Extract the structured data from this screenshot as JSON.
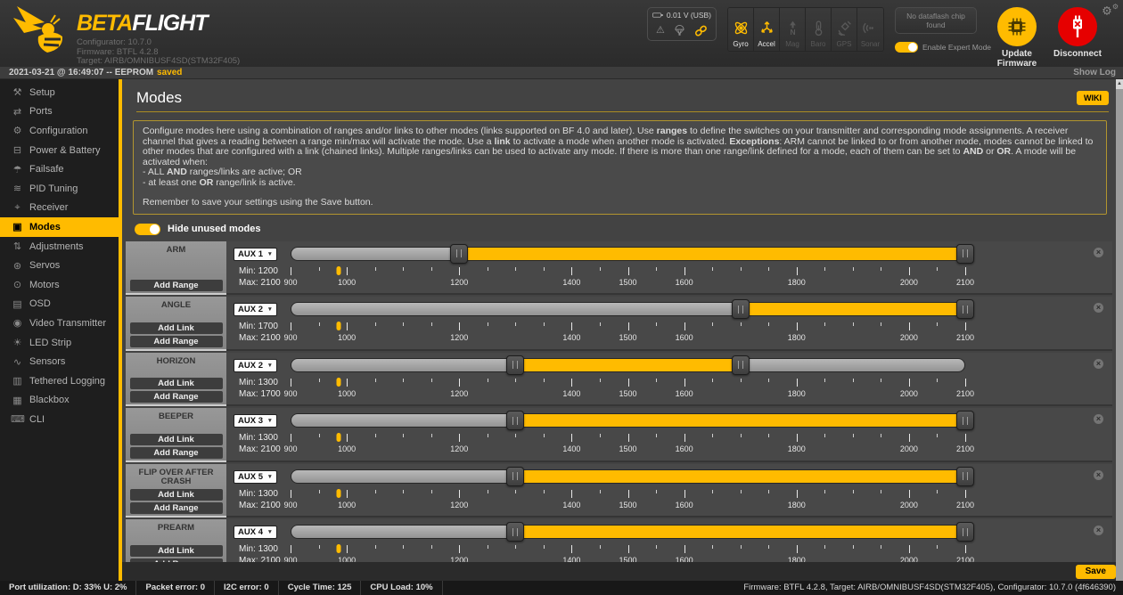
{
  "icons": {
    "dropdown": "▼",
    "close": "×",
    "scroll_up": "▲",
    "gear": "⚙",
    "warning": "⚠"
  },
  "colors": {
    "accent": "#ffbb00",
    "danger": "#e60000"
  },
  "header": {
    "logo_part1": "BETA",
    "logo_part2": "FLIGHT",
    "version_lines": [
      "Configurator: 10.7.0",
      "Firmware: BTFL 4.2.8",
      "Target: AIRB/OMNIBUSF4SD(STM32F405)"
    ],
    "battery_voltage": "0.01 V (USB)",
    "sensors": [
      {
        "label": "Gyro",
        "icon": "gyro",
        "active": true
      },
      {
        "label": "Accel",
        "icon": "accel",
        "active": true
      },
      {
        "label": "Mag",
        "icon": "mag",
        "active": false
      },
      {
        "label": "Baro",
        "icon": "baro",
        "active": false
      },
      {
        "label": "GPS",
        "icon": "gps",
        "active": false
      },
      {
        "label": "Sonar",
        "icon": "sonar",
        "active": false
      }
    ],
    "dataflash_label": "No dataflash chip found",
    "expert_mode_label": "Enable Expert Mode",
    "update_firmware_label": "Update Firmware",
    "disconnect_label": "Disconnect"
  },
  "logbar": {
    "message": "2021-03-21 @ 16:49:07 -- EEPROM",
    "status_word": "saved",
    "show_log": "Show Log"
  },
  "sidebar": {
    "active": "Modes",
    "items": [
      {
        "label": "Setup",
        "glyph": "⚒"
      },
      {
        "label": "Ports",
        "glyph": "⇄"
      },
      {
        "label": "Configuration",
        "glyph": "⚙"
      },
      {
        "label": "Power & Battery",
        "glyph": "⊟"
      },
      {
        "label": "Failsafe",
        "glyph": "☂"
      },
      {
        "label": "PID Tuning",
        "glyph": "≋"
      },
      {
        "label": "Receiver",
        "glyph": "⌖"
      },
      {
        "label": "Modes",
        "glyph": "▣"
      },
      {
        "label": "Adjustments",
        "glyph": "⇅"
      },
      {
        "label": "Servos",
        "glyph": "⊛"
      },
      {
        "label": "Motors",
        "glyph": "⊙"
      },
      {
        "label": "OSD",
        "glyph": "▤"
      },
      {
        "label": "Video Transmitter",
        "glyph": "◉"
      },
      {
        "label": "LED Strip",
        "glyph": "☀"
      },
      {
        "label": "Sensors",
        "glyph": "∿"
      },
      {
        "label": "Tethered Logging",
        "glyph": "▥"
      },
      {
        "label": "Blackbox",
        "glyph": "▦"
      },
      {
        "label": "CLI",
        "glyph": "⌨"
      }
    ]
  },
  "page": {
    "title": "Modes",
    "wiki_label": "WIKI",
    "note_paragraph": "Configure modes here using a combination of ranges and/or links to other modes (links supported on BF 4.0 and later). Use **ranges** to define the switches on your transmitter and corresponding mode assignments. A receiver channel that gives a reading between a range min/max will activate the mode. Use a **link** to activate a mode when another mode is activated. **Exceptions**: ARM cannot be linked to or from another mode, modes cannot be linked to other modes that are configured with a link (chained links). Multiple ranges/links can be used to activate any mode. If there is more than one range/link defined for a mode, each of them can be set to **AND** or **OR**. A mode will be activated when:",
    "note_bullets": [
      "- ALL **AND** ranges/links are active; OR",
      "- at least one **OR** range/link is active."
    ],
    "note_footer": "Remember to save your settings using the Save button.",
    "hide_unused_label": "Hide unused modes",
    "save_label": "Save"
  },
  "axis": {
    "min": 900,
    "max": 2100,
    "minor_step": 50,
    "labeled": [
      900,
      1000,
      1200,
      1400,
      1500,
      1600,
      1800,
      2000,
      2100
    ]
  },
  "modes": [
    {
      "name": "ARM",
      "aux": "AUX 1",
      "min_label": "Min: 1200",
      "max_label": "Max: 2100",
      "buttons": [
        "Add Range"
      ],
      "range": [
        1200,
        2100
      ],
      "marker": 985
    },
    {
      "name": "ANGLE",
      "aux": "AUX 2",
      "min_label": "Min: 1700",
      "max_label": "Max: 2100",
      "buttons": [
        "Add Link",
        "Add Range"
      ],
      "range": [
        1700,
        2100
      ],
      "marker": 985
    },
    {
      "name": "HORIZON",
      "aux": "AUX 2",
      "min_label": "Min: 1300",
      "max_label": "Max: 1700",
      "buttons": [
        "Add Link",
        "Add Range"
      ],
      "range": [
        1300,
        1700
      ],
      "marker": 985
    },
    {
      "name": "BEEPER",
      "aux": "AUX 3",
      "min_label": "Min: 1300",
      "max_label": "Max: 2100",
      "buttons": [
        "Add Link",
        "Add Range"
      ],
      "range": [
        1300,
        2100
      ],
      "marker": 985
    },
    {
      "name": "FLIP OVER AFTER CRASH",
      "aux": "AUX 5",
      "min_label": "Min: 1300",
      "max_label": "Max: 2100",
      "buttons": [
        "Add Link",
        "Add Range"
      ],
      "range": [
        1300,
        2100
      ],
      "marker": 985
    },
    {
      "name": "PREARM",
      "aux": "AUX 4",
      "min_label": "Min: 1300",
      "max_label": "Max: 2100",
      "buttons": [
        "Add Link",
        "Add Range"
      ],
      "range": [
        1300,
        2100
      ],
      "marker": 985
    }
  ],
  "statusbar": {
    "segments": [
      "Port utilization: D: 33% U: 2%",
      "Packet error: 0",
      "I2C error: 0",
      "Cycle Time: 125",
      "CPU Load: 10%"
    ],
    "firmware_info": "Firmware: BTFL 4.2.8, Target: AIRB/OMNIBUSF4SD(STM32F405), Configurator: 10.7.0 (4f646390)"
  }
}
